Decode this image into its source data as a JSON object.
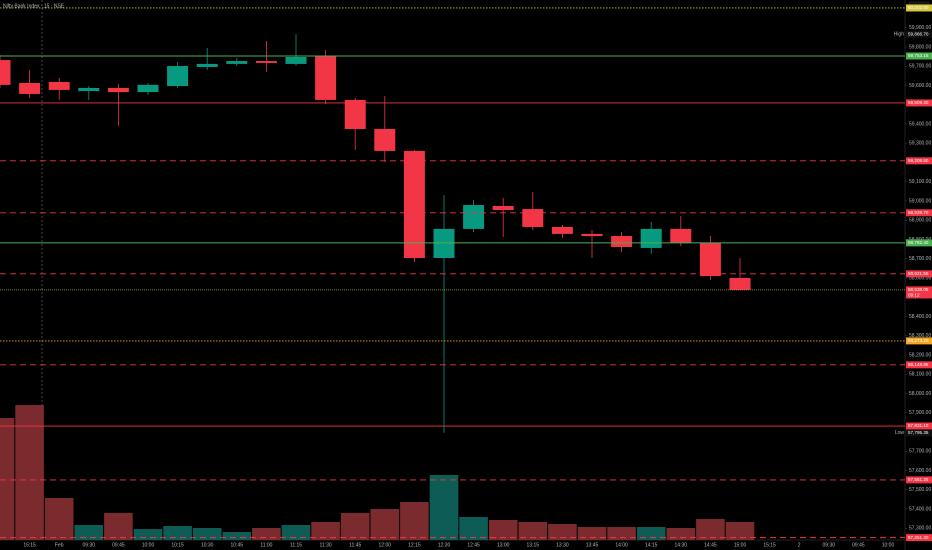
{
  "chart_data": {
    "type": "candlestick",
    "title": "Nifty Bank Index · 15 · NSE",
    "currency": "INR",
    "categories": [
      null,
      "15:15",
      "Feb",
      "09:30",
      "09:45",
      "10:00",
      "10:15",
      "10:30",
      "10:45",
      "11:00",
      "11:15",
      "11:30",
      "11:45",
      "12:00",
      "12:15",
      "12:30",
      "12:45",
      "13:00",
      "13:15",
      "13:30",
      "13:45",
      "14:00",
      "14:15",
      "14:30",
      "14:45",
      "15:00",
      "15:15",
      "2",
      "09:30",
      "09:45",
      "10:00"
    ],
    "open": [
      59732,
      59613,
      59618,
      59571,
      59587,
      59566,
      59597,
      59696,
      59712,
      59727,
      59712,
      59753,
      59525,
      59374,
      59260,
      58704,
      58855,
      58974,
      58958,
      58865,
      58829,
      58818,
      58756,
      58855,
      58782,
      58600,
      null,
      null,
      null,
      null,
      null
    ],
    "high": [
      59758,
      59681,
      59639,
      59597,
      59608,
      59613,
      59722,
      59795,
      59743,
      59831,
      59866.7,
      59784,
      59535,
      59545,
      59265,
      59031,
      59005,
      59016,
      59047,
      58875,
      58849,
      58839,
      58891,
      58922,
      58818,
      58704,
      null,
      null,
      null,
      null,
      null
    ],
    "low": [
      59587,
      59535,
      59525,
      59525,
      59390,
      59551,
      59587,
      59681,
      59701,
      59670,
      59701,
      59504,
      59265,
      59203,
      58683,
      57795.35,
      58839,
      58813,
      58849,
      58808,
      58704,
      58735,
      58725,
      58766,
      58590,
      58538.05,
      null,
      null,
      null,
      null,
      null
    ],
    "close": [
      59603,
      59556,
      59577,
      59587,
      59566,
      59603,
      59701,
      59712,
      59727,
      59717,
      59748,
      59525,
      59374,
      59260,
      58704,
      58855,
      58979,
      58953,
      58865,
      58829,
      58818,
      58761,
      58855,
      58782,
      58610,
      58538.05,
      null,
      null,
      null,
      null,
      null
    ],
    "volume": [
      122,
      135,
      42,
      15,
      27,
      11,
      14,
      12,
      8,
      12,
      15,
      18,
      27,
      31,
      38,
      65,
      23,
      20,
      18,
      16,
      13,
      13,
      13,
      12,
      21,
      18,
      null,
      null,
      null,
      null,
      null
    ],
    "volume_ylim": [
      0,
      540
    ],
    "up_color": "#089981",
    "down_color": "#f23645",
    "up_volume_color": "#0d5c55",
    "down_volume_color": "#7b2b2e",
    "ylim": [
      57239,
      60044
    ],
    "yticks": [
      {
        "value": 57300,
        "label": "57,300.00"
      },
      {
        "value": 57400,
        "label": "57,400.00"
      },
      {
        "value": 57500,
        "label": "57,500.00"
      },
      {
        "value": 57600,
        "label": "57,600.00"
      },
      {
        "value": 57700,
        "label": "57,700.00"
      },
      {
        "value": 57800,
        "label": "57,800.00"
      },
      {
        "value": 57900,
        "label": "57,900.00"
      },
      {
        "value": 58000,
        "label": "58,000.00"
      },
      {
        "value": 58100,
        "label": "58,100.00"
      },
      {
        "value": 58200,
        "label": "58,200.00"
      },
      {
        "value": 58300,
        "label": "58,300.00"
      },
      {
        "value": 58400,
        "label": "58,400.00"
      },
      {
        "value": 58500,
        "label": "58,500.00"
      },
      {
        "value": 58600,
        "label": "58,600.00"
      },
      {
        "value": 58700,
        "label": "58,700.00"
      },
      {
        "value": 58800,
        "label": "58,800.00"
      },
      {
        "value": 58900,
        "label": "58,900.00"
      },
      {
        "value": 59000,
        "label": "59,000.00"
      },
      {
        "value": 59100,
        "label": "59,100.00"
      },
      {
        "value": 59200,
        "label": "59,200.00"
      },
      {
        "value": 59300,
        "label": "59,300.00"
      },
      {
        "value": 59400,
        "label": "59,400.00"
      },
      {
        "value": 59500,
        "label": "59,500.00"
      },
      {
        "value": 59600,
        "label": "59,600.00"
      },
      {
        "value": 59700,
        "label": "59,700.00"
      },
      {
        "value": 59800,
        "label": "59,800.00"
      },
      {
        "value": 59900,
        "label": "59,900.00"
      }
    ],
    "levels": [
      {
        "value": 60002.6,
        "label": "60,002.60",
        "color": "#d6c641",
        "style": "dotted"
      },
      {
        "value": 59753.15,
        "label": "59,753.15",
        "color": "#4caf50",
        "style": "solid"
      },
      {
        "value": 59509.3,
        "label": "59,509.30",
        "color": "#f23645",
        "style": "solid"
      },
      {
        "value": 59208.6,
        "label": "59,208.60",
        "color": "#f23645",
        "style": "dashed"
      },
      {
        "value": 58938.7,
        "label": "58,938.70",
        "color": "#f23645",
        "style": "dashed"
      },
      {
        "value": 58782.4,
        "label": "58,782.40",
        "color": "#4caf50",
        "style": "solid"
      },
      {
        "value": 58621.55,
        "label": "58,621.55",
        "color": "#f23645",
        "style": "dashed"
      },
      {
        "value": 58273.2,
        "label": "58,273.20",
        "color": "#f5a623",
        "style": "dotted"
      },
      {
        "value": 58148.85,
        "label": "58,148.85",
        "color": "#f23645",
        "style": "dashed"
      },
      {
        "value": 57831.1,
        "label": "57,831.10",
        "color": "#f23645",
        "style": "solid"
      },
      {
        "value": 57551.25,
        "label": "57,551.25",
        "color": "#f23645",
        "style": "dashed"
      },
      {
        "value": 57251.3,
        "label": "57,251.30",
        "color": "#f23645",
        "style": "dashed"
      }
    ],
    "last_price": {
      "value": 58538.05,
      "label": "58,538.05",
      "countdown": "09:12",
      "color": "#d6c641"
    },
    "high_marker": {
      "text": "High",
      "value": 59866.7,
      "label": "59,866.70"
    },
    "low_marker": {
      "text": "Low",
      "value": 57795.35,
      "label": "57,795.35"
    }
  }
}
